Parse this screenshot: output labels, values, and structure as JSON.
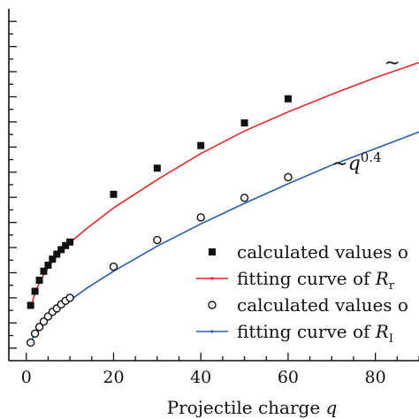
{
  "chart_data": {
    "type": "scatter",
    "xlabel": "Projectile charge",
    "xlabel_var": "q",
    "xlim": [
      -4,
      90
    ],
    "ylim": [
      0.75,
      1.45
    ],
    "x_ticks": [
      0,
      20,
      40,
      60,
      80
    ],
    "grid": false,
    "legend_position": "lower-right",
    "series": [
      {
        "name": "calculated values o",
        "marker": "filled-square",
        "color": "#111111",
        "x": [
          1,
          2,
          3,
          4,
          5,
          6,
          7,
          8,
          9,
          10,
          20,
          30,
          40,
          50,
          60
        ],
        "y": [
          0.86,
          0.888,
          0.91,
          0.928,
          0.94,
          0.952,
          0.962,
          0.971,
          0.979,
          0.986,
          1.081,
          1.133,
          1.178,
          1.223,
          1.271
        ]
      },
      {
        "name": "fitting curve of R_r",
        "marker": "line",
        "color": "#e0292b",
        "x": [
          1,
          2,
          3,
          4,
          5,
          6,
          8,
          10,
          14,
          20,
          30,
          40,
          50,
          60,
          70,
          80,
          90
        ],
        "y": [
          0.855,
          0.885,
          0.905,
          0.921,
          0.935,
          0.947,
          0.967,
          0.985,
          1.014,
          1.054,
          1.11,
          1.162,
          1.207,
          1.245,
          1.28,
          1.313,
          1.343
        ]
      },
      {
        "name": "calculated values o",
        "marker": "open-circle",
        "color": "#111111",
        "x": [
          1,
          2,
          3,
          4,
          5,
          6,
          7,
          8,
          9,
          10,
          20,
          30,
          40,
          50,
          60
        ],
        "y": [
          0.786,
          0.804,
          0.817,
          0.828,
          0.838,
          0.847,
          0.854,
          0.862,
          0.869,
          0.875,
          0.937,
          0.99,
          1.035,
          1.074,
          1.115
        ]
      },
      {
        "name": "fitting curve of R_I",
        "marker": "line",
        "color": "#2a5ea8",
        "x": [
          1,
          2,
          3,
          4,
          5,
          6,
          8,
          10,
          14,
          20,
          30,
          40,
          50,
          60,
          70,
          80,
          90
        ],
        "y": [
          0.788,
          0.802,
          0.814,
          0.824,
          0.833,
          0.842,
          0.857,
          0.87,
          0.895,
          0.928,
          0.978,
          1.022,
          1.063,
          1.102,
          1.139,
          1.172,
          1.205
        ]
      }
    ],
    "annotations": [
      {
        "text": "∼q",
        "superscript": "0.4",
        "x": 70,
        "y": 1.13
      },
      {
        "text": "∼",
        "x": 82,
        "y": 1.33
      }
    ],
    "legend": [
      {
        "label": "calculated values o",
        "symbol": "filled-square"
      },
      {
        "label": "fitting curve of ",
        "math": "R",
        "sub": "r",
        "symbol": "red-line"
      },
      {
        "label": "calculated values o",
        "symbol": "open-circle"
      },
      {
        "label": "fitting curve of ",
        "math": "R",
        "sub": "I",
        "symbol": "blue-line"
      }
    ]
  }
}
